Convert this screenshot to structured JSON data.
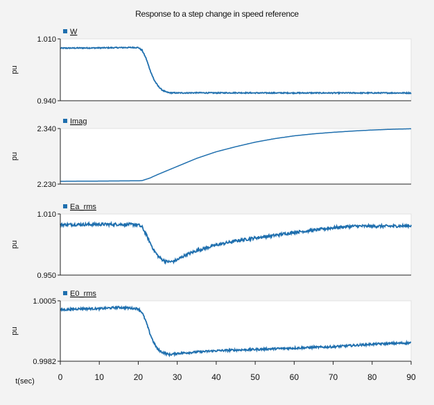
{
  "chart_data": {
    "title": "Response to a step change in speed reference",
    "x_axis": {
      "label": "t(sec)",
      "range": [
        0,
        90
      ],
      "ticks": [
        "0",
        "10",
        "20",
        "30",
        "40",
        "50",
        "60",
        "70",
        "80",
        "90"
      ]
    },
    "series_color": "#1f6fae",
    "panels": [
      {
        "type": "line",
        "legend": "W",
        "ylabel": "pu",
        "ylim": [
          0.94,
          1.01
        ],
        "ytick_labels": [
          "1.010",
          "0.940"
        ],
        "points": [
          [
            0,
            0.9995
          ],
          [
            5,
            0.9997
          ],
          [
            10,
            0.9998
          ],
          [
            15,
            1.0001
          ],
          [
            19,
            1.0003
          ],
          [
            20,
            1.0002
          ],
          [
            21,
            0.997
          ],
          [
            22,
            0.988
          ],
          [
            23,
            0.975
          ],
          [
            24,
            0.964
          ],
          [
            25,
            0.957
          ],
          [
            26,
            0.9525
          ],
          [
            27,
            0.95
          ],
          [
            28,
            0.949
          ],
          [
            30,
            0.9488
          ],
          [
            35,
            0.949
          ],
          [
            40,
            0.9488
          ],
          [
            45,
            0.949
          ],
          [
            50,
            0.9488
          ],
          [
            60,
            0.9488
          ],
          [
            70,
            0.9488
          ],
          [
            80,
            0.9488
          ],
          [
            90,
            0.9488
          ]
        ],
        "noise": 0.0006
      },
      {
        "type": "line",
        "legend": "Imag",
        "ylabel": "pu",
        "ylim": [
          2.23,
          2.34
        ],
        "ytick_labels": [
          "2.340",
          "2.230"
        ],
        "points": [
          [
            0,
            2.2355
          ],
          [
            10,
            2.236
          ],
          [
            20,
            2.2365
          ],
          [
            21,
            2.237
          ],
          [
            23,
            2.242
          ],
          [
            25,
            2.249
          ],
          [
            30,
            2.265
          ],
          [
            35,
            2.281
          ],
          [
            40,
            2.294
          ],
          [
            45,
            2.304
          ],
          [
            50,
            2.313
          ],
          [
            55,
            2.32
          ],
          [
            60,
            2.3255
          ],
          [
            65,
            2.3295
          ],
          [
            70,
            2.3325
          ],
          [
            75,
            2.335
          ],
          [
            80,
            2.337
          ],
          [
            85,
            2.3385
          ],
          [
            90,
            2.3395
          ]
        ],
        "noise": 0
      },
      {
        "type": "line",
        "legend": "Ea_rms",
        "ylabel": "pu",
        "ylim": [
          0.95,
          1.01
        ],
        "ytick_labels": [
          "1.010",
          "0.950"
        ],
        "points": [
          [
            0,
            0.9995
          ],
          [
            10,
            0.9998
          ],
          [
            15,
            0.9998
          ],
          [
            19,
            0.9996
          ],
          [
            20,
            0.9993
          ],
          [
            21,
            0.997
          ],
          [
            22,
            0.99
          ],
          [
            23,
            0.982
          ],
          [
            24,
            0.9745
          ],
          [
            25,
            0.969
          ],
          [
            26,
            0.9655
          ],
          [
            27,
            0.9635
          ],
          [
            28,
            0.963
          ],
          [
            29,
            0.9635
          ],
          [
            30,
            0.965
          ],
          [
            32,
            0.9695
          ],
          [
            35,
            0.974
          ],
          [
            40,
            0.9795
          ],
          [
            45,
            0.9835
          ],
          [
            50,
            0.9865
          ],
          [
            55,
            0.989
          ],
          [
            60,
            0.992
          ],
          [
            65,
            0.994
          ],
          [
            70,
            0.9965
          ],
          [
            75,
            0.998
          ],
          [
            80,
            0.998
          ],
          [
            85,
            0.998
          ],
          [
            90,
            0.9985
          ]
        ],
        "noise": 0.0014
      },
      {
        "type": "line",
        "legend": "E0_rms",
        "ylabel": "pu",
        "ylim": [
          0.9982,
          1.0005
        ],
        "ytick_labels": [
          "1.0005",
          "0.9982"
        ],
        "points": [
          [
            0,
            1.00015
          ],
          [
            5,
            1.0002
          ],
          [
            10,
            1.0002
          ],
          [
            15,
            1.00025
          ],
          [
            20,
            1.0002
          ],
          [
            21,
            1.00005
          ],
          [
            22,
            0.9997
          ],
          [
            23,
            0.99925
          ],
          [
            24,
            0.9989
          ],
          [
            25,
            0.99865
          ],
          [
            26,
            0.99855
          ],
          [
            27,
            0.9985
          ],
          [
            28,
            0.99845
          ],
          [
            30,
            0.9985
          ],
          [
            35,
            0.99855
          ],
          [
            40,
            0.9986
          ],
          [
            50,
            0.99865
          ],
          [
            60,
            0.9987
          ],
          [
            70,
            0.99875
          ],
          [
            80,
            0.99885
          ],
          [
            90,
            0.9989
          ]
        ],
        "noise": 4e-05
      }
    ]
  }
}
